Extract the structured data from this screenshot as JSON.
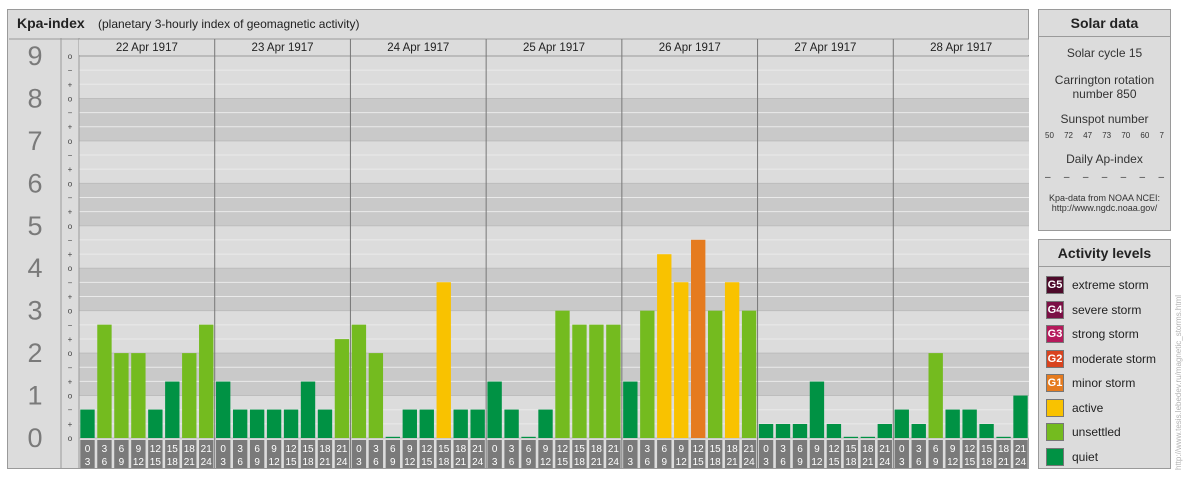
{
  "header": {
    "title": "Kpa-index",
    "subtitle": "(planetary 3-hourly index of geomagnetic activity)"
  },
  "chart_data": {
    "type": "bar",
    "y_major_ticks": [
      "0",
      "1",
      "2",
      "3",
      "4",
      "5",
      "6",
      "7",
      "8",
      "9"
    ],
    "y_minor_ticks": [
      "o",
      "+",
      "−",
      "o",
      "+",
      "−",
      "o",
      "+",
      "−",
      "o",
      "+",
      "−",
      "o",
      "+",
      "−",
      "o",
      "+",
      "−",
      "o",
      "+",
      "−",
      "o",
      "+",
      "−",
      "o",
      "+",
      "−",
      "o"
    ],
    "ylim": [
      0,
      9
    ],
    "days": [
      "22 Apr 1917",
      "23 Apr 1917",
      "24 Apr 1917",
      "25 Apr 1917",
      "26 Apr 1917",
      "27 Apr 1917",
      "28 Apr 1917"
    ],
    "interval_labels": [
      [
        "0",
        "3"
      ],
      [
        "3",
        "6"
      ],
      [
        "6",
        "9"
      ],
      [
        "9",
        "12"
      ],
      [
        "12",
        "15"
      ],
      [
        "15",
        "18"
      ],
      [
        "18",
        "21"
      ],
      [
        "21",
        "24"
      ]
    ],
    "values": [
      [
        0.67,
        2.67,
        2.0,
        2.0,
        0.67,
        1.33,
        2.0,
        2.67
      ],
      [
        1.33,
        0.67,
        0.67,
        0.67,
        0.67,
        1.33,
        0.67,
        2.33
      ],
      [
        2.67,
        2.0,
        0.0,
        0.67,
        0.67,
        3.67,
        0.67,
        0.67
      ],
      [
        1.33,
        0.67,
        0.0,
        0.67,
        3.0,
        2.67,
        2.67,
        2.67
      ],
      [
        1.33,
        3.0,
        4.33,
        3.67,
        4.67,
        3.0,
        3.67,
        3.0
      ],
      [
        0.33,
        0.33,
        0.33,
        1.33,
        0.33,
        0.0,
        0.0,
        0.33
      ],
      [
        0.67,
        0.33,
        2.0,
        0.67,
        0.67,
        0.33,
        0.0,
        1.0
      ]
    ],
    "colors": {
      "quiet": "#009244",
      "unsettled": "#74bb1f",
      "active": "#f9c200",
      "minor_storm": "#e57b1f",
      "moderate_storm": "#d9431e",
      "strong_storm": "#b5195b",
      "severe_storm": "#7b1045",
      "extreme_storm": "#4d0a2a"
    }
  },
  "solar_data": {
    "title": "Solar data",
    "solar_cycle": "Solar cycle 15",
    "carrington_line1": "Carrington rotation",
    "carrington_line2": "number 850",
    "sunspot_title": "Sunspot number",
    "sunspot_values": [
      "50",
      "72",
      "47",
      "73",
      "70",
      "60",
      "7"
    ],
    "ap_title": "Daily Ap-index",
    "ap_values": [
      "–",
      "–",
      "–",
      "–",
      "–",
      "–",
      "–"
    ],
    "source_line1": "Kpa-data from NOAA NCEI:",
    "source_line2": "http://www.ngdc.noaa.gov/"
  },
  "activity_levels": {
    "title": "Activity levels",
    "items": [
      {
        "code": "G5",
        "label": "extreme storm",
        "color": "#4d0a2a"
      },
      {
        "code": "G4",
        "label": "severe storm",
        "color": "#7b1045"
      },
      {
        "code": "G3",
        "label": "strong storm",
        "color": "#b5195b"
      },
      {
        "code": "G2",
        "label": "moderate storm",
        "color": "#d9431e"
      },
      {
        "code": "G1",
        "label": "minor storm",
        "color": "#e57b1f"
      },
      {
        "code": "",
        "label": "active",
        "color": "#f9c200"
      },
      {
        "code": "",
        "label": "unsettled",
        "color": "#74bb1f"
      },
      {
        "code": "",
        "label": "quiet",
        "color": "#009244"
      }
    ]
  },
  "watermark": "http://www.tesis.lebedev.ru/magnetic_storms.html"
}
